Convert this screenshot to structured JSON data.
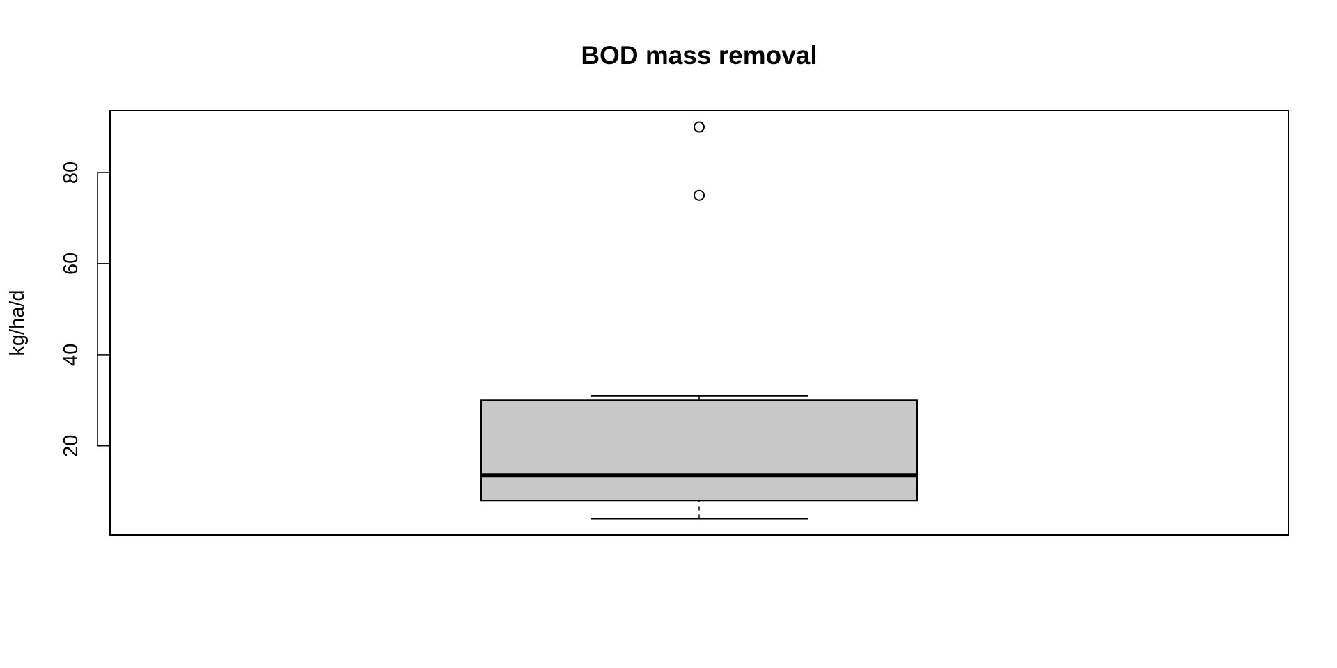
{
  "chart_data": {
    "type": "boxplot",
    "title": "BOD mass removal",
    "xlabel": "",
    "ylabel": "kg/ha/d",
    "ylim": [
      0.4,
      93.6
    ],
    "yticks": [
      20,
      40,
      60,
      80
    ],
    "ytick_labels": [
      "20",
      "40",
      "60",
      "80"
    ],
    "grid": false,
    "box": {
      "whisker_low": 4,
      "q1": 8,
      "median": 13.5,
      "q3": 30,
      "whisker_high": 31
    },
    "outliers": [
      75,
      90
    ],
    "colors": {
      "box_fill": "#c8c8c8",
      "stroke": "#000000",
      "background": "#ffffff"
    }
  }
}
